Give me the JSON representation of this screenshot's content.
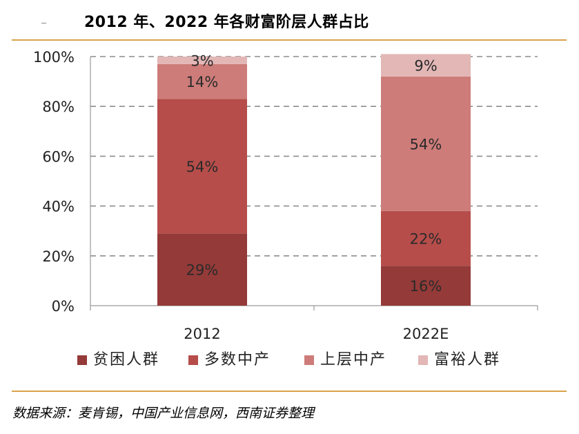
{
  "title": "2012 年、2022 年各财富阶层人群占比",
  "source": "数据来源：麦肯锡，中国产业信息网，西南证券整理",
  "chart_data": {
    "type": "bar",
    "stacked": true,
    "title": "2012 年、2022 年各财富阶层人群占比",
    "categories": [
      "2012",
      "2022E"
    ],
    "series": [
      {
        "name": "贫困人群",
        "color": "#943a38",
        "values": [
          29,
          16
        ],
        "labels": [
          "29%",
          "16%"
        ]
      },
      {
        "name": "多数中产",
        "color": "#b64d4a",
        "values": [
          54,
          22
        ],
        "labels": [
          "54%",
          "22%"
        ]
      },
      {
        "name": "上层中产",
        "color": "#cd7c79",
        "values": [
          14,
          54
        ],
        "labels": [
          "14%",
          "54%"
        ]
      },
      {
        "name": "富裕人群",
        "color": "#e2b7b6",
        "values": [
          3,
          9
        ],
        "labels": [
          "3%",
          "9%"
        ]
      }
    ],
    "yticks": [
      "0%",
      "20%",
      "40%",
      "60%",
      "80%",
      "100%"
    ],
    "ylim": [
      0,
      100
    ],
    "grid": true,
    "legend": "bottom"
  }
}
